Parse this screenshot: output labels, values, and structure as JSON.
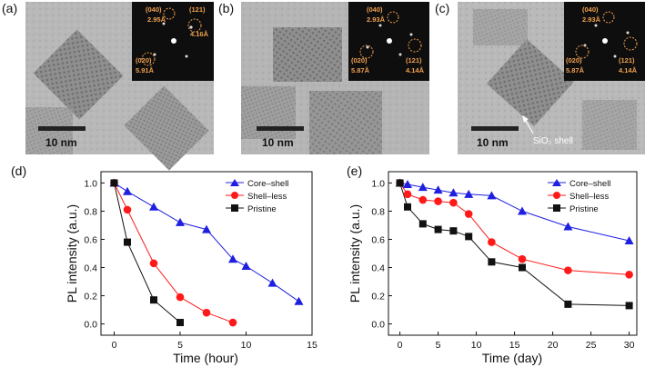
{
  "panels": [
    {
      "label": "(a)",
      "scale_bar": "10 nm",
      "fft": [
        "(040)",
        "2.95Å",
        "(121)",
        "4.16Å",
        "(020)",
        "5.91Å"
      ]
    },
    {
      "label": "(b)",
      "scale_bar": "10 nm",
      "fft": [
        "(040)",
        "2.93Å",
        "(020)",
        "5.87Å",
        "(121)",
        "4.14Å"
      ]
    },
    {
      "label": "(c)",
      "scale_bar": "10 nm",
      "annotation": "SiO₂ shell",
      "fft": [
        "(040)",
        "2.93Å",
        "(020)",
        "5.87Å",
        "(121)",
        "4.14Å"
      ]
    }
  ],
  "colors": {
    "core_shell": "#1f1fe0",
    "shell_less": "#ff1a1a",
    "pristine": "#111111",
    "fft_text": "#f0a050"
  },
  "chart_data": [
    {
      "panel": "(d)",
      "type": "line",
      "xlabel": "Time (hour)",
      "ylabel": "PL intensity (a.u.)",
      "xlim": [
        -1,
        15
      ],
      "ylim": [
        -0.08,
        1.08
      ],
      "xticks": [
        0,
        5,
        10,
        15
      ],
      "yticks": [
        0.0,
        0.2,
        0.4,
        0.6,
        0.8,
        1.0
      ],
      "legend_position": "top-right",
      "series": [
        {
          "name": "Core–shell",
          "marker": "triangle",
          "x": [
            0,
            1,
            3,
            5,
            7,
            9,
            10,
            12,
            14
          ],
          "y": [
            1.0,
            0.94,
            0.83,
            0.72,
            0.67,
            0.46,
            0.41,
            0.29,
            0.16
          ]
        },
        {
          "name": "Shell–less",
          "marker": "circle",
          "x": [
            0,
            1,
            3,
            5,
            7,
            9
          ],
          "y": [
            1.0,
            0.81,
            0.43,
            0.19,
            0.08,
            0.01
          ]
        },
        {
          "name": "Pristine",
          "marker": "square",
          "x": [
            0,
            1,
            3,
            5
          ],
          "y": [
            1.0,
            0.58,
            0.17,
            0.01
          ]
        }
      ]
    },
    {
      "panel": "(e)",
      "type": "line",
      "xlabel": "Time (day)",
      "ylabel": "PL intensity (a.u.)",
      "xlim": [
        -1.5,
        31
      ],
      "ylim": [
        -0.08,
        1.08
      ],
      "xticks": [
        0,
        5,
        10,
        15,
        20,
        25,
        30
      ],
      "yticks": [
        0.0,
        0.2,
        0.4,
        0.6,
        0.8,
        1.0
      ],
      "legend_position": "top-right",
      "series": [
        {
          "name": "Core–shell",
          "marker": "triangle",
          "x": [
            0,
            1,
            3,
            5,
            7,
            9,
            12,
            16,
            22,
            30
          ],
          "y": [
            1.0,
            0.99,
            0.97,
            0.95,
            0.93,
            0.92,
            0.91,
            0.8,
            0.69,
            0.59
          ]
        },
        {
          "name": "Shell–less",
          "marker": "circle",
          "x": [
            0,
            1,
            3,
            5,
            7,
            9,
            12,
            16,
            22,
            30
          ],
          "y": [
            1.0,
            0.92,
            0.88,
            0.87,
            0.86,
            0.78,
            0.58,
            0.46,
            0.38,
            0.35
          ]
        },
        {
          "name": "Pristine",
          "marker": "square",
          "x": [
            0,
            1,
            3,
            5,
            7,
            9,
            12,
            16,
            22,
            30
          ],
          "y": [
            1.0,
            0.83,
            0.71,
            0.67,
            0.66,
            0.62,
            0.44,
            0.4,
            0.14,
            0.13
          ]
        }
      ]
    }
  ]
}
